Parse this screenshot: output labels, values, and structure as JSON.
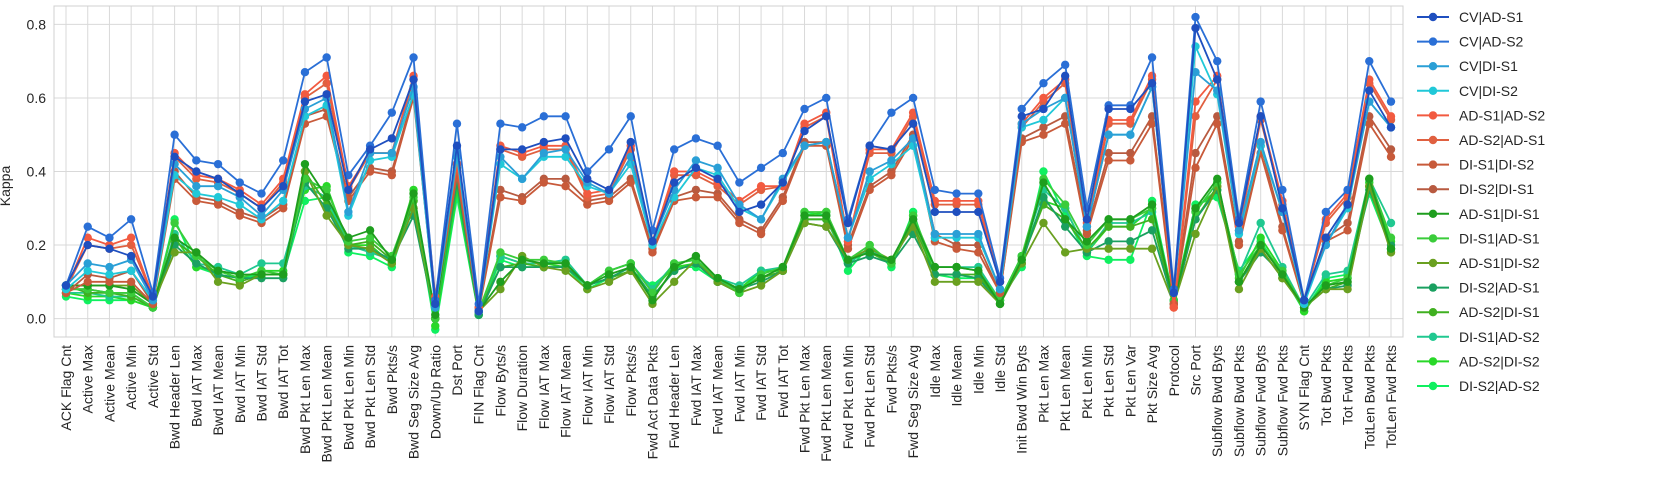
{
  "chart_data": {
    "type": "line",
    "title": "",
    "xlabel": "",
    "ylabel": "Kappa",
    "ylim": [
      -0.05,
      0.85
    ],
    "yticks": [
      0.0,
      0.2,
      0.4,
      0.6,
      0.8
    ],
    "ytick_labels": [
      "0.0",
      "0.2",
      "0.4",
      "0.6",
      "0.8"
    ],
    "grid": true,
    "legend_position": "right",
    "categories": [
      "ACK Flag Cnt",
      "Active Max",
      "Active Mean",
      "Active Min",
      "Active Std",
      "Bwd Header Len",
      "Bwd IAT Max",
      "Bwd IAT Mean",
      "Bwd IAT Min",
      "Bwd IAT Std",
      "Bwd IAT Tot",
      "Bwd Pkt Len Max",
      "Bwd Pkt Len Mean",
      "Bwd Pkt Len Min",
      "Bwd Pkt Len Std",
      "Bwd Pkts/s",
      "Bwd Seg Size Avg",
      "Down/Up Ratio",
      "Dst Port",
      "FIN Flag Cnt",
      "Flow Byts/s",
      "Flow Duration",
      "Flow IAT Max",
      "Flow IAT Mean",
      "Flow IAT Min",
      "Flow IAT Std",
      "Flow Pkts/s",
      "Fwd Act Data Pkts",
      "Fwd Header Len",
      "Fwd IAT Max",
      "Fwd IAT Mean",
      "Fwd IAT Min",
      "Fwd IAT Std",
      "Fwd IAT Tot",
      "Fwd Pkt Len Max",
      "Fwd Pkt Len Mean",
      "Fwd Pkt Len Min",
      "Fwd Pkt Len Std",
      "Fwd Pkts/s",
      "Fwd Seg Size Avg",
      "Idle Max",
      "Idle Mean",
      "Idle Min",
      "Idle Std",
      "Init Bwd Win Byts",
      "Pkt Len Max",
      "Pkt Len Mean",
      "Pkt Len Min",
      "Pkt Len Std",
      "Pkt Len Var",
      "Pkt Size Avg",
      "Protocol",
      "Src Port",
      "Subflow Bwd Byts",
      "Subflow Bwd Pkts",
      "Subflow Fwd Byts",
      "Subflow Fwd Pkts",
      "SYN Flag Cnt",
      "Tot Bwd Pkts",
      "Tot Fwd Pkts",
      "TotLen Bwd Pkts",
      "TotLen Fwd Pkts"
    ],
    "series": [
      {
        "name": "CV|AD-S1",
        "color": "#1f4fbf",
        "values": [
          0.09,
          0.2,
          0.19,
          0.17,
          0.06,
          0.44,
          0.4,
          0.38,
          0.34,
          0.3,
          0.36,
          0.59,
          0.61,
          0.35,
          0.46,
          0.49,
          0.65,
          0.04,
          0.47,
          0.02,
          0.46,
          0.46,
          0.48,
          0.49,
          0.38,
          0.35,
          0.48,
          0.21,
          0.37,
          0.41,
          0.38,
          0.29,
          0.31,
          0.37,
          0.51,
          0.55,
          0.26,
          0.47,
          0.46,
          0.53,
          0.29,
          0.29,
          0.29,
          0.1,
          0.55,
          0.57,
          0.66,
          0.27,
          0.57,
          0.57,
          0.64,
          0.07,
          0.79,
          0.65,
          0.26,
          0.55,
          0.3,
          0.05,
          0.22,
          0.31,
          0.62,
          0.52
        ]
      },
      {
        "name": "CV|AD-S2",
        "color": "#2a6fd6",
        "values": [
          0.09,
          0.25,
          0.22,
          0.27,
          0.07,
          0.5,
          0.43,
          0.42,
          0.37,
          0.34,
          0.43,
          0.67,
          0.71,
          0.39,
          0.47,
          0.56,
          0.71,
          0.05,
          0.53,
          0.04,
          0.53,
          0.52,
          0.55,
          0.55,
          0.4,
          0.46,
          0.55,
          0.24,
          0.46,
          0.49,
          0.47,
          0.37,
          0.41,
          0.45,
          0.57,
          0.6,
          0.27,
          0.47,
          0.56,
          0.6,
          0.35,
          0.34,
          0.34,
          0.11,
          0.57,
          0.64,
          0.69,
          0.3,
          0.58,
          0.58,
          0.71,
          0.08,
          0.82,
          0.7,
          0.27,
          0.59,
          0.35,
          0.05,
          0.29,
          0.35,
          0.7,
          0.59
        ]
      },
      {
        "name": "CV|DI-S1",
        "color": "#2a9fd6",
        "values": [
          0.09,
          0.15,
          0.14,
          0.16,
          0.05,
          0.42,
          0.36,
          0.36,
          0.33,
          0.28,
          0.35,
          0.57,
          0.6,
          0.29,
          0.45,
          0.45,
          0.63,
          0.03,
          0.45,
          0.02,
          0.44,
          0.38,
          0.45,
          0.46,
          0.37,
          0.34,
          0.44,
          0.21,
          0.35,
          0.43,
          0.41,
          0.31,
          0.27,
          0.38,
          0.47,
          0.48,
          0.22,
          0.4,
          0.43,
          0.49,
          0.23,
          0.23,
          0.23,
          0.08,
          0.53,
          0.57,
          0.6,
          0.25,
          0.5,
          0.5,
          0.63,
          0.07,
          0.67,
          0.62,
          0.24,
          0.48,
          0.29,
          0.05,
          0.2,
          0.31,
          0.59,
          0.52
        ]
      },
      {
        "name": "CV|DI-S2",
        "color": "#20c8d8",
        "values": [
          0.08,
          0.13,
          0.12,
          0.13,
          0.05,
          0.39,
          0.34,
          0.33,
          0.31,
          0.27,
          0.32,
          0.55,
          0.58,
          0.28,
          0.43,
          0.44,
          0.61,
          0.03,
          0.44,
          0.02,
          0.42,
          0.38,
          0.44,
          0.44,
          0.36,
          0.34,
          0.42,
          0.2,
          0.33,
          0.41,
          0.39,
          0.3,
          0.27,
          0.37,
          0.47,
          0.48,
          0.22,
          0.38,
          0.42,
          0.47,
          0.22,
          0.22,
          0.22,
          0.08,
          0.52,
          0.54,
          0.6,
          0.25,
          0.5,
          0.5,
          0.63,
          0.07,
          0.74,
          0.61,
          0.23,
          0.47,
          0.29,
          0.04,
          0.2,
          0.3,
          0.59,
          0.52
        ]
      },
      {
        "name": "AD-S1|AD-S2",
        "color": "#f25a40",
        "values": [
          0.08,
          0.22,
          0.2,
          0.22,
          0.06,
          0.45,
          0.39,
          0.38,
          0.35,
          0.31,
          0.38,
          0.61,
          0.66,
          0.36,
          0.45,
          0.45,
          0.66,
          0.06,
          0.42,
          0.03,
          0.47,
          0.45,
          0.47,
          0.47,
          0.34,
          0.35,
          0.47,
          0.21,
          0.4,
          0.4,
          0.37,
          0.32,
          0.36,
          0.36,
          0.53,
          0.56,
          0.21,
          0.46,
          0.46,
          0.56,
          0.32,
          0.32,
          0.32,
          0.1,
          0.53,
          0.6,
          0.65,
          0.26,
          0.54,
          0.54,
          0.66,
          0.03,
          0.59,
          0.66,
          0.25,
          0.55,
          0.32,
          0.05,
          0.27,
          0.34,
          0.65,
          0.55
        ]
      },
      {
        "name": "AD-S2|AD-S1",
        "color": "#e06040",
        "values": [
          0.08,
          0.2,
          0.19,
          0.2,
          0.06,
          0.44,
          0.38,
          0.37,
          0.34,
          0.3,
          0.37,
          0.6,
          0.64,
          0.35,
          0.45,
          0.45,
          0.65,
          0.05,
          0.42,
          0.03,
          0.46,
          0.44,
          0.46,
          0.46,
          0.33,
          0.34,
          0.46,
          0.2,
          0.39,
          0.39,
          0.36,
          0.31,
          0.35,
          0.36,
          0.52,
          0.55,
          0.21,
          0.45,
          0.45,
          0.55,
          0.31,
          0.31,
          0.31,
          0.1,
          0.52,
          0.59,
          0.64,
          0.25,
          0.53,
          0.53,
          0.65,
          0.03,
          0.55,
          0.65,
          0.24,
          0.54,
          0.31,
          0.05,
          0.26,
          0.33,
          0.64,
          0.54
        ]
      },
      {
        "name": "DI-S1|DI-S2",
        "color": "#c85a3a",
        "values": [
          0.07,
          0.1,
          0.1,
          0.1,
          0.04,
          0.38,
          0.32,
          0.31,
          0.28,
          0.26,
          0.3,
          0.53,
          0.55,
          0.32,
          0.4,
          0.39,
          0.6,
          0.04,
          0.39,
          0.02,
          0.33,
          0.32,
          0.37,
          0.36,
          0.31,
          0.32,
          0.37,
          0.18,
          0.32,
          0.33,
          0.33,
          0.26,
          0.23,
          0.32,
          0.47,
          0.47,
          0.19,
          0.35,
          0.39,
          0.49,
          0.21,
          0.19,
          0.18,
          0.07,
          0.48,
          0.5,
          0.53,
          0.23,
          0.43,
          0.43,
          0.53,
          0.04,
          0.41,
          0.53,
          0.2,
          0.45,
          0.24,
          0.04,
          0.21,
          0.24,
          0.53,
          0.44
        ]
      },
      {
        "name": "DI-S2|DI-S1",
        "color": "#b85a40",
        "values": [
          0.07,
          0.12,
          0.11,
          0.13,
          0.04,
          0.4,
          0.33,
          0.32,
          0.29,
          0.27,
          0.31,
          0.55,
          0.57,
          0.33,
          0.41,
          0.4,
          0.61,
          0.04,
          0.4,
          0.02,
          0.35,
          0.33,
          0.38,
          0.38,
          0.32,
          0.33,
          0.38,
          0.19,
          0.33,
          0.35,
          0.34,
          0.27,
          0.24,
          0.33,
          0.48,
          0.48,
          0.2,
          0.36,
          0.4,
          0.5,
          0.23,
          0.2,
          0.2,
          0.07,
          0.49,
          0.52,
          0.55,
          0.24,
          0.45,
          0.45,
          0.55,
          0.04,
          0.45,
          0.55,
          0.21,
          0.47,
          0.25,
          0.04,
          0.22,
          0.26,
          0.55,
          0.46
        ]
      },
      {
        "name": "AD-S1|DI-S1",
        "color": "#1e9e1e",
        "values": [
          0.09,
          0.09,
          0.09,
          0.08,
          0.04,
          0.22,
          0.18,
          0.13,
          0.12,
          0.12,
          0.12,
          0.42,
          0.33,
          0.22,
          0.24,
          0.16,
          0.34,
          0.01,
          0.42,
          0.02,
          0.1,
          0.16,
          0.15,
          0.15,
          0.09,
          0.12,
          0.14,
          0.05,
          0.14,
          0.17,
          0.11,
          0.08,
          0.11,
          0.14,
          0.28,
          0.28,
          0.16,
          0.18,
          0.16,
          0.27,
          0.14,
          0.14,
          0.13,
          0.04,
          0.16,
          0.37,
          0.27,
          0.21,
          0.27,
          0.27,
          0.31,
          0.04,
          0.3,
          0.38,
          0.1,
          0.2,
          0.12,
          0.03,
          0.09,
          0.1,
          0.38,
          0.19
        ]
      },
      {
        "name": "DI-S1|AD-S1",
        "color": "#3acc3a",
        "values": [
          0.08,
          0.08,
          0.07,
          0.07,
          0.03,
          0.26,
          0.17,
          0.13,
          0.11,
          0.13,
          0.12,
          0.38,
          0.35,
          0.21,
          0.22,
          0.17,
          0.33,
          0.0,
          0.4,
          0.02,
          0.18,
          0.16,
          0.16,
          0.15,
          0.09,
          0.13,
          0.15,
          0.07,
          0.15,
          0.16,
          0.11,
          0.07,
          0.12,
          0.14,
          0.29,
          0.29,
          0.16,
          0.2,
          0.15,
          0.28,
          0.14,
          0.14,
          0.13,
          0.05,
          0.17,
          0.38,
          0.31,
          0.2,
          0.27,
          0.27,
          0.3,
          0.05,
          0.29,
          0.37,
          0.12,
          0.2,
          0.13,
          0.03,
          0.09,
          0.11,
          0.38,
          0.22
        ]
      },
      {
        "name": "AD-S1|DI-S2",
        "color": "#6aa020",
        "values": [
          0.09,
          0.09,
          0.09,
          0.09,
          0.04,
          0.18,
          0.18,
          0.1,
          0.09,
          0.12,
          0.12,
          0.4,
          0.28,
          0.2,
          0.19,
          0.15,
          0.3,
          0.0,
          0.41,
          0.02,
          0.08,
          0.17,
          0.14,
          0.13,
          0.08,
          0.1,
          0.13,
          0.04,
          0.1,
          0.16,
          0.1,
          0.07,
          0.09,
          0.13,
          0.26,
          0.25,
          0.16,
          0.19,
          0.16,
          0.25,
          0.1,
          0.1,
          0.1,
          0.04,
          0.15,
          0.26,
          0.18,
          0.19,
          0.19,
          0.19,
          0.19,
          0.04,
          0.23,
          0.36,
          0.08,
          0.19,
          0.11,
          0.03,
          0.08,
          0.08,
          0.36,
          0.18
        ]
      },
      {
        "name": "DI-S2|AD-S1",
        "color": "#1aa060",
        "values": [
          0.08,
          0.08,
          0.07,
          0.07,
          0.03,
          0.2,
          0.15,
          0.12,
          0.11,
          0.11,
          0.11,
          0.37,
          0.3,
          0.19,
          0.19,
          0.16,
          0.28,
          0.0,
          0.37,
          0.01,
          0.14,
          0.14,
          0.14,
          0.14,
          0.09,
          0.11,
          0.14,
          0.06,
          0.13,
          0.15,
          0.1,
          0.08,
          0.1,
          0.13,
          0.26,
          0.25,
          0.15,
          0.17,
          0.15,
          0.23,
          0.12,
          0.12,
          0.11,
          0.04,
          0.15,
          0.33,
          0.25,
          0.18,
          0.21,
          0.21,
          0.24,
          0.04,
          0.27,
          0.35,
          0.1,
          0.18,
          0.12,
          0.03,
          0.08,
          0.09,
          0.35,
          0.2
        ]
      },
      {
        "name": "AD-S2|DI-S1",
        "color": "#40b020",
        "values": [
          0.09,
          0.07,
          0.07,
          0.06,
          0.03,
          0.21,
          0.17,
          0.12,
          0.1,
          0.12,
          0.12,
          0.4,
          0.31,
          0.2,
          0.21,
          0.16,
          0.32,
          0.0,
          0.39,
          0.02,
          0.14,
          0.15,
          0.14,
          0.14,
          0.09,
          0.11,
          0.13,
          0.06,
          0.13,
          0.15,
          0.1,
          0.08,
          0.11,
          0.13,
          0.27,
          0.27,
          0.16,
          0.18,
          0.15,
          0.26,
          0.12,
          0.12,
          0.12,
          0.04,
          0.16,
          0.31,
          0.27,
          0.19,
          0.25,
          0.25,
          0.27,
          0.04,
          0.27,
          0.36,
          0.1,
          0.19,
          0.11,
          0.03,
          0.08,
          0.1,
          0.36,
          0.19
        ]
      },
      {
        "name": "DI-S1|AD-S2",
        "color": "#20c890",
        "values": [
          0.07,
          0.07,
          0.06,
          0.06,
          0.03,
          0.23,
          0.15,
          0.14,
          0.12,
          0.15,
          0.15,
          0.36,
          0.33,
          0.2,
          0.18,
          0.16,
          0.3,
          0.0,
          0.38,
          0.02,
          0.17,
          0.15,
          0.15,
          0.16,
          0.09,
          0.13,
          0.15,
          0.08,
          0.15,
          0.16,
          0.11,
          0.09,
          0.13,
          0.14,
          0.27,
          0.27,
          0.15,
          0.19,
          0.15,
          0.27,
          0.14,
          0.14,
          0.14,
          0.05,
          0.17,
          0.35,
          0.3,
          0.18,
          0.26,
          0.26,
          0.29,
          0.05,
          0.29,
          0.37,
          0.12,
          0.26,
          0.14,
          0.03,
          0.12,
          0.13,
          0.38,
          0.26
        ]
      },
      {
        "name": "AD-S2|DI-S2",
        "color": "#28d828",
        "values": [
          0.07,
          0.06,
          0.06,
          0.05,
          0.03,
          0.22,
          0.14,
          0.13,
          0.11,
          0.13,
          0.13,
          0.35,
          0.36,
          0.2,
          0.2,
          0.15,
          0.35,
          -0.02,
          0.35,
          0.01,
          0.17,
          0.15,
          0.15,
          0.14,
          0.09,
          0.13,
          0.15,
          0.08,
          0.14,
          0.15,
          0.11,
          0.08,
          0.13,
          0.13,
          0.28,
          0.29,
          0.15,
          0.19,
          0.15,
          0.28,
          0.12,
          0.12,
          0.11,
          0.05,
          0.17,
          0.32,
          0.3,
          0.18,
          0.25,
          0.25,
          0.3,
          0.05,
          0.3,
          0.35,
          0.11,
          0.22,
          0.13,
          0.02,
          0.1,
          0.11,
          0.37,
          0.21
        ]
      },
      {
        "name": "DI-S2|AD-S2",
        "color": "#10f060",
        "values": [
          0.06,
          0.05,
          0.05,
          0.05,
          0.03,
          0.27,
          0.14,
          0.12,
          0.11,
          0.12,
          0.12,
          0.32,
          0.33,
          0.18,
          0.17,
          0.14,
          0.32,
          -0.03,
          0.33,
          0.01,
          0.16,
          0.14,
          0.14,
          0.14,
          0.08,
          0.11,
          0.13,
          0.09,
          0.14,
          0.14,
          0.1,
          0.07,
          0.13,
          0.13,
          0.29,
          0.28,
          0.13,
          0.2,
          0.14,
          0.29,
          0.12,
          0.11,
          0.11,
          0.05,
          0.14,
          0.4,
          0.28,
          0.17,
          0.16,
          0.16,
          0.32,
          0.05,
          0.31,
          0.33,
          0.13,
          0.21,
          0.12,
          0.02,
          0.11,
          0.12,
          0.34,
          0.19
        ]
      }
    ]
  }
}
